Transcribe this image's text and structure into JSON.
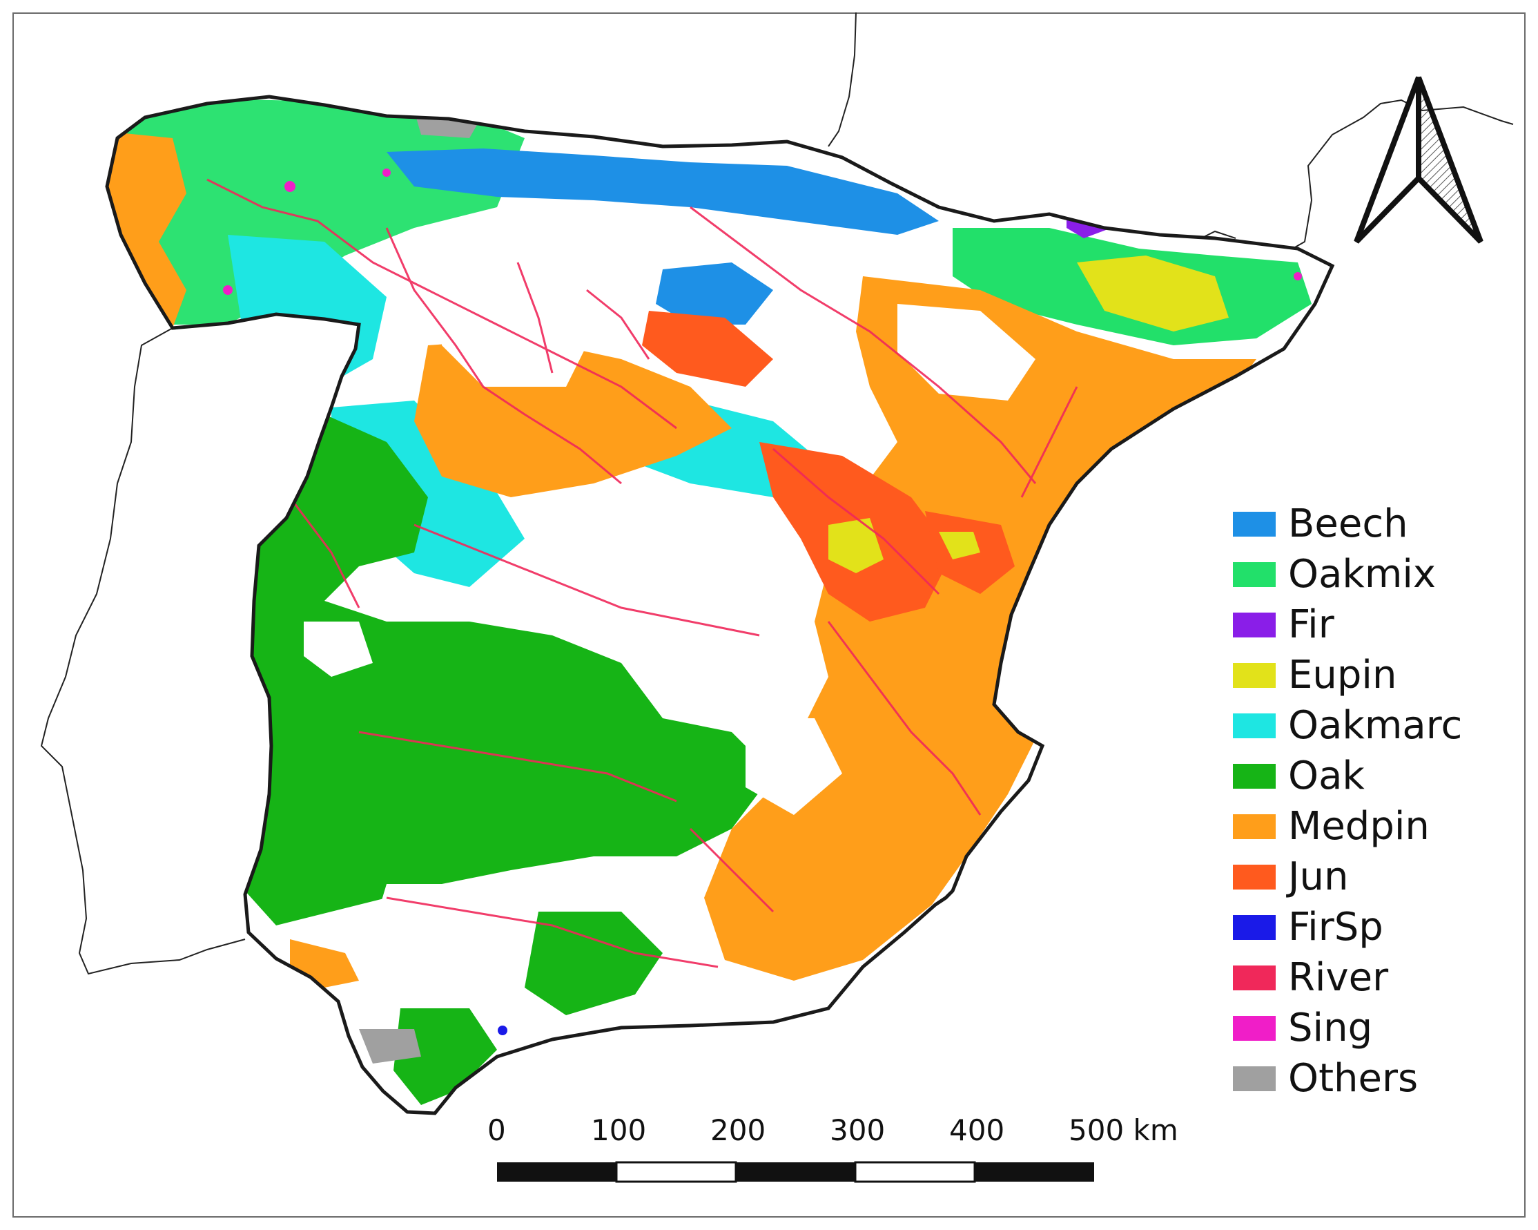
{
  "legend": {
    "items": [
      {
        "label": "Beech",
        "color": "#1e90e6"
      },
      {
        "label": "Oakmix",
        "color": "#22e06a"
      },
      {
        "label": "Fir",
        "color": "#8a1ee8"
      },
      {
        "label": "Eupin",
        "color": "#e2e21a"
      },
      {
        "label": "Oakmarc",
        "color": "#1ee6e2"
      },
      {
        "label": "Oak",
        "color": "#16b416"
      },
      {
        "label": "Medpin",
        "color": "#ff9e1a"
      },
      {
        "label": "Jun",
        "color": "#ff5a1e"
      },
      {
        "label": "FirSp",
        "color": "#1a1ae8"
      },
      {
        "label": "River",
        "color": "#f0285a"
      },
      {
        "label": "Sing",
        "color": "#f01ec8"
      },
      {
        "label": "Others",
        "color": "#a0a0a0"
      }
    ]
  },
  "scale_bar": {
    "labels": [
      "0",
      "100",
      "200",
      "300",
      "400",
      "500 km"
    ]
  },
  "north_arrow": {
    "icon": "north-arrow-icon"
  }
}
